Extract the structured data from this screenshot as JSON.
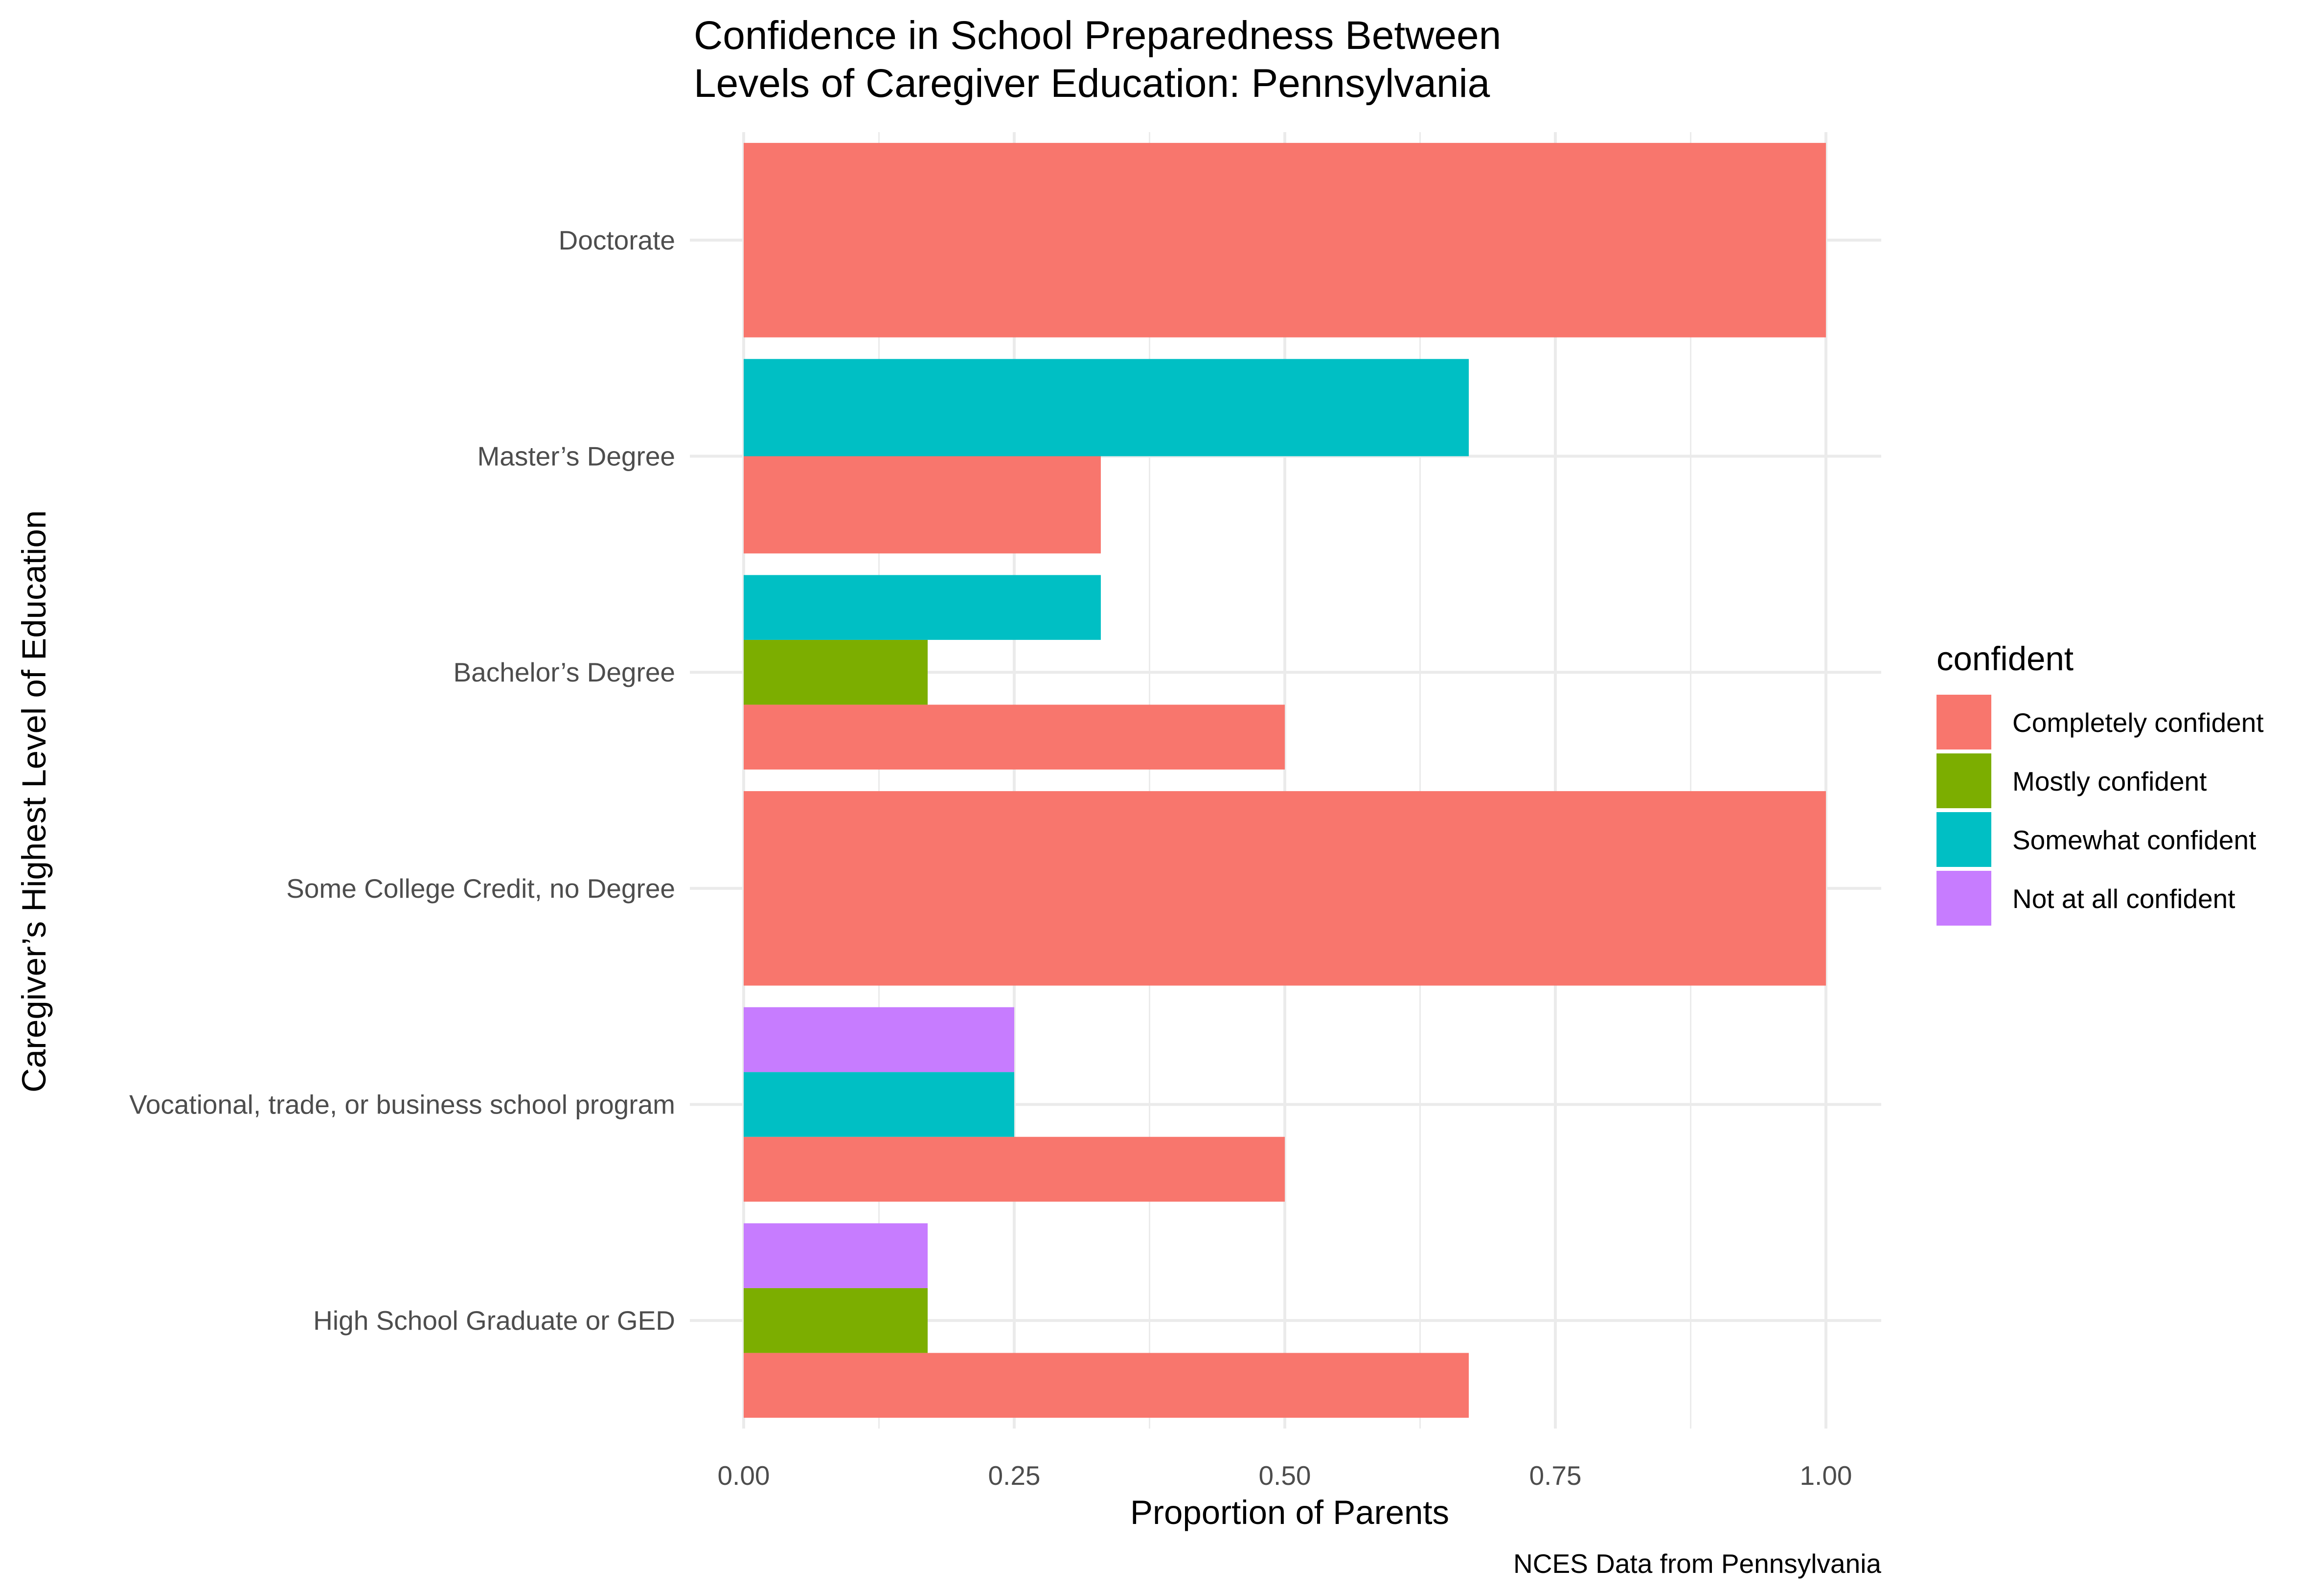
{
  "chart_data": {
    "type": "bar",
    "orientation": "horizontal",
    "position": "dodge",
    "title": "Confidence in School Preparedness Between Levels of Caregiver Education: Pennsylvania",
    "title_lines": [
      "Confidence in School Preparedness Between",
      "Levels of Caregiver Education: Pennsylvania"
    ],
    "xlabel": "Proportion of Parents",
    "ylabel": "Caregiver’s Highest Level of Education",
    "caption": "NCES Data from Pennsylvania",
    "xlim": [
      0,
      1
    ],
    "x_ticks": [
      "0.00",
      "0.25",
      "0.50",
      "0.75",
      "1.00"
    ],
    "grid": true,
    "legend": {
      "title": "confident",
      "position": "right",
      "entries": [
        {
          "name": "Completely confident",
          "color": "#F8766D"
        },
        {
          "name": "Mostly confident",
          "color": "#7CAE00"
        },
        {
          "name": "Somewhat confident",
          "color": "#00BFC4"
        },
        {
          "name": "Not at all confident",
          "color": "#C77CFF"
        }
      ]
    },
    "categories": [
      "Doctorate",
      "Master’s Degree",
      "Bachelor’s Degree",
      "Some College Credit, no Degree",
      "Vocational, trade, or business school program",
      "High School Graduate or GED"
    ],
    "series": [
      {
        "name": "Completely confident",
        "values": [
          1.0,
          0.33,
          0.5,
          1.0,
          0.5,
          0.67
        ]
      },
      {
        "name": "Mostly confident",
        "values": [
          null,
          null,
          0.17,
          null,
          null,
          0.17
        ]
      },
      {
        "name": "Somewhat confident",
        "values": [
          null,
          0.67,
          0.33,
          null,
          0.25,
          null
        ]
      },
      {
        "name": "Not at all confident",
        "values": [
          null,
          null,
          null,
          null,
          0.25,
          0.17
        ]
      }
    ]
  }
}
